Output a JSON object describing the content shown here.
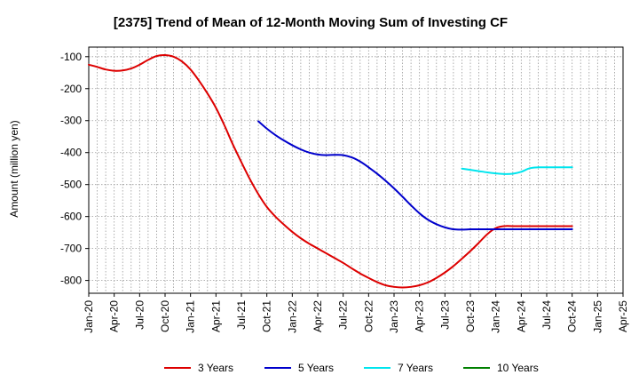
{
  "chart_data": {
    "type": "line",
    "title": "[2375]  Trend of Mean of 12-Month Moving Sum of Investing CF",
    "xlabel": "",
    "ylabel": "Amount (million yen)",
    "ylim": [
      -840,
      -70
    ],
    "yticks": [
      -100,
      -200,
      -300,
      -400,
      -500,
      -600,
      -700,
      -800
    ],
    "x_range_months": [
      0,
      63
    ],
    "categories": [
      "Jan-20",
      "Apr-20",
      "Jul-20",
      "Oct-20",
      "Jan-21",
      "Apr-21",
      "Jul-21",
      "Oct-21",
      "Jan-22",
      "Apr-22",
      "Jul-22",
      "Oct-22",
      "Jan-23",
      "Apr-23",
      "Jul-23",
      "Oct-23",
      "Jan-24",
      "Apr-24",
      "Jul-24",
      "Oct-24",
      "Jan-25",
      "Apr-25"
    ],
    "grid": true,
    "legend_position": "bottom",
    "series": [
      {
        "name": "3 Years",
        "color": "#dd0000",
        "x": [
          0,
          1,
          2,
          3,
          4,
          5,
          6,
          7,
          8,
          9,
          10,
          11,
          12,
          13,
          14,
          15,
          16,
          17,
          18,
          19,
          20,
          21,
          22,
          23,
          24,
          25,
          26,
          27,
          28,
          29,
          30,
          31,
          32,
          33,
          34,
          35,
          36,
          37,
          38,
          39,
          40,
          41,
          42,
          43,
          44,
          45,
          46,
          47,
          48,
          49,
          50,
          51,
          52,
          53,
          54,
          55,
          56,
          57
        ],
        "values": [
          -125,
          -132,
          -140,
          -144,
          -143,
          -137,
          -125,
          -110,
          -98,
          -95,
          -100,
          -115,
          -140,
          -175,
          -215,
          -260,
          -315,
          -375,
          -430,
          -483,
          -530,
          -570,
          -600,
          -625,
          -648,
          -668,
          -685,
          -700,
          -715,
          -730,
          -745,
          -762,
          -778,
          -792,
          -805,
          -815,
          -820,
          -822,
          -820,
          -815,
          -806,
          -792,
          -775,
          -755,
          -732,
          -708,
          -682,
          -655,
          -636,
          -630,
          -630,
          -630,
          -630,
          -630,
          -630,
          -630,
          -630,
          -630
        ]
      },
      {
        "name": "5 Years",
        "color": "#0000cc",
        "x": [
          20,
          21,
          22,
          23,
          24,
          25,
          26,
          27,
          28,
          29,
          30,
          31,
          32,
          33,
          34,
          35,
          36,
          37,
          38,
          39,
          40,
          41,
          42,
          43,
          44,
          45,
          46,
          47,
          48,
          49,
          50,
          51,
          52,
          53,
          54,
          55,
          56,
          57
        ],
        "values": [
          -302,
          -325,
          -345,
          -362,
          -377,
          -390,
          -400,
          -406,
          -408,
          -407,
          -408,
          -415,
          -428,
          -446,
          -466,
          -488,
          -512,
          -538,
          -565,
          -590,
          -610,
          -624,
          -634,
          -640,
          -641,
          -640,
          -640,
          -640,
          -640,
          -640,
          -640,
          -640,
          -640,
          -640,
          -640,
          -640,
          -640,
          -640
        ]
      },
      {
        "name": "7 Years",
        "color": "#00e5ee",
        "x": [
          44,
          45,
          46,
          47,
          48,
          49,
          50,
          51,
          52,
          53,
          54,
          55,
          56,
          57
        ],
        "values": [
          -450,
          -454,
          -458,
          -462,
          -465,
          -467,
          -466,
          -460,
          -449,
          -446,
          -446,
          -446,
          -446,
          -446
        ]
      },
      {
        "name": "10 Years",
        "color": "#008000",
        "x": [],
        "values": []
      }
    ]
  }
}
